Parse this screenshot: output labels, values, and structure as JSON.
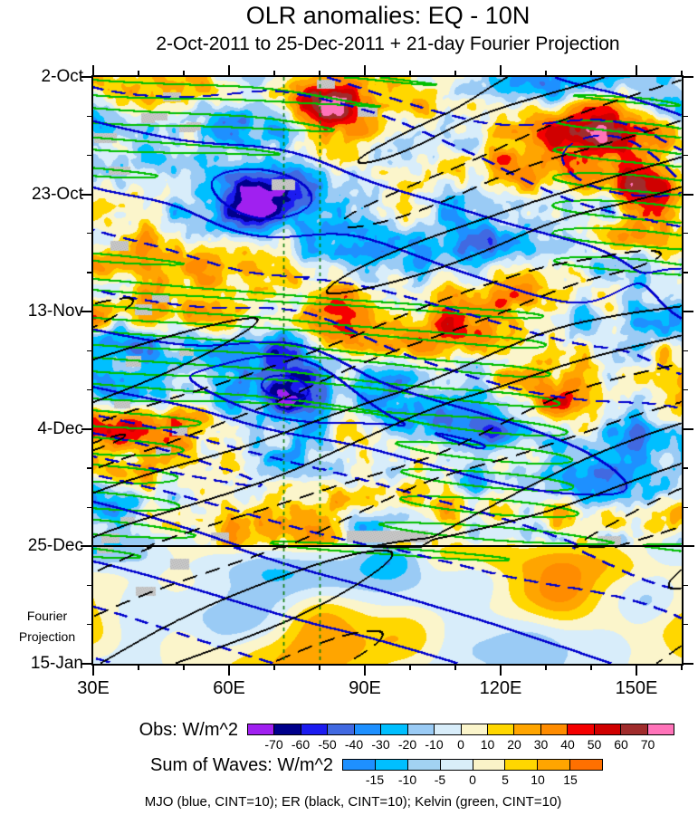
{
  "title": "OLR anomalies: EQ - 10N",
  "subtitle": "2-Oct-2011 to 25-Dec-2011 + 21-day Fourier Projection",
  "y_axis": {
    "tick_labels": [
      "2-Oct",
      "23-Oct",
      "13-Nov",
      "4-Dec",
      "25-Dec",
      "15-Jan"
    ],
    "side_note_line1": "Fourier",
    "side_note_line2": "Projection"
  },
  "x_axis": {
    "tick_labels": [
      "30E",
      "60E",
      "90E",
      "120E",
      "150E"
    ]
  },
  "colorbars": [
    {
      "label": "Obs: W/m^2",
      "tick_labels": [
        "-70",
        "-60",
        "-50",
        "-40",
        "-30",
        "-20",
        "-10",
        "0",
        "10",
        "20",
        "30",
        "40",
        "50",
        "60",
        "70"
      ],
      "colors": [
        "#A020F0",
        "#00008B",
        "#1C1CF0",
        "#4169E1",
        "#1E90FF",
        "#00BFFF",
        "#9ACBF5",
        "#D8EDFA",
        "#FBF5CB",
        "#FFD700",
        "#FFA500",
        "#FF8C00",
        "#F50000",
        "#D00000",
        "#A02C2C",
        "#FF73B9"
      ]
    },
    {
      "label": "Sum of Waves: W/m^2",
      "tick_labels": [
        "-15",
        "-10",
        "-5",
        "0",
        "5",
        "10",
        "15"
      ],
      "colors": [
        "#1E90FF",
        "#00BFFF",
        "#A2D2F2",
        "#D9EEF9",
        "#FAF3C8",
        "#FFD700",
        "#FFA500",
        "#FF7000"
      ]
    }
  ],
  "footnote": "MJO (blue, CINT=10); ER (black, CINT=10); Kelvin (green, CINT=10)",
  "chart_data": {
    "type": "heatmap",
    "subtype": "hovmoller-time-longitude",
    "title": "OLR anomalies: EQ - 10N",
    "subtitle": "2-Oct-2011 to 25-Dec-2011 + 21-day Fourier Projection",
    "x_range_deg_east": [
      30,
      160
    ],
    "x_major_tick_deg": 30,
    "x_minor_tick_deg": 10,
    "y_dates": [
      "2-Oct",
      "23-Oct",
      "13-Nov",
      "4-Dec",
      "25-Dec",
      "15-Jan"
    ],
    "y_major_tick_days": 21,
    "y_minor_tick_days": 7,
    "total_days": 105,
    "obs_projection_boundary_date": "25-Dec",
    "obs_fill_levels": [
      -70,
      -60,
      -50,
      -40,
      -30,
      -20,
      -10,
      0,
      10,
      20,
      30,
      40,
      50,
      60,
      70
    ],
    "sum_of_waves_levels": [
      -15,
      -10,
      -5,
      0,
      5,
      10,
      15
    ],
    "missing_data_color": "#C8C8C8",
    "reference_longitudes_deg": [
      72,
      80
    ],
    "overlays": [
      {
        "name": "MJO",
        "color": "blue",
        "line_hex": "#0000CD",
        "cint": 10
      },
      {
        "name": "ER",
        "color": "black",
        "line_hex": "#000000",
        "cint": 10
      },
      {
        "name": "Kelvin",
        "color": "green",
        "line_hex": "#00BE00",
        "cint": 10
      }
    ],
    "anomaly_centers_obs": [
      {
        "lon": 83,
        "day": 5,
        "amp": 42,
        "sx": 9,
        "sy": 6
      },
      {
        "lon": 62,
        "day": 10,
        "amp": -32,
        "sx": 8,
        "sy": 5
      },
      {
        "lon": 140,
        "day": 11,
        "amp": 38,
        "sx": 10,
        "sy": 6
      },
      {
        "lon": 152,
        "day": 22,
        "amp": 40,
        "sx": 7,
        "sy": 7
      },
      {
        "lon": 67,
        "day": 23,
        "amp": -55,
        "sx": 9,
        "sy": 6
      },
      {
        "lon": 90,
        "day": 27,
        "amp": -32,
        "sx": 7,
        "sy": 5
      },
      {
        "lon": 38,
        "day": 29,
        "amp": 22,
        "sx": 6,
        "sy": 5
      },
      {
        "lon": 85,
        "day": 43,
        "amp": 45,
        "sx": 8,
        "sy": 6
      },
      {
        "lon": 118,
        "day": 40,
        "amp": 24,
        "sx": 9,
        "sy": 6
      },
      {
        "lon": 72,
        "day": 53,
        "amp": -58,
        "sx": 9,
        "sy": 6
      },
      {
        "lon": 96,
        "day": 56,
        "amp": -28,
        "sx": 6,
        "sy": 4
      },
      {
        "lon": 130,
        "day": 54,
        "amp": 28,
        "sx": 8,
        "sy": 5
      },
      {
        "lon": 148,
        "day": 59,
        "amp": -38,
        "sx": 8,
        "sy": 6
      },
      {
        "lon": 87,
        "day": 63,
        "amp": 40,
        "sx": 7,
        "sy": 5
      },
      {
        "lon": 116,
        "day": 64,
        "amp": -32,
        "sx": 8,
        "sy": 5
      },
      {
        "lon": 74,
        "day": 72,
        "amp": -28,
        "sx": 8,
        "sy": 5
      },
      {
        "lon": 50,
        "day": 78,
        "amp": 22,
        "sx": 8,
        "sy": 5
      },
      {
        "lon": 92,
        "day": 80,
        "amp": -34,
        "sx": 9,
        "sy": 5
      },
      {
        "lon": 133,
        "day": 76,
        "amp": 22,
        "sx": 7,
        "sy": 5
      }
    ],
    "anomaly_centers_projection": [
      {
        "lon": 95,
        "day": 86,
        "amp": -26,
        "sx": 8,
        "sy": 3
      },
      {
        "lon": 80,
        "day": 97,
        "amp": 34,
        "sx": 10,
        "sy": 6
      },
      {
        "lon": 98,
        "day": 100,
        "amp": 26,
        "sx": 8,
        "sy": 5
      },
      {
        "lon": 133,
        "day": 92,
        "amp": 26,
        "sx": 8,
        "sy": 5
      },
      {
        "lon": 40,
        "day": 95,
        "amp": -12,
        "sx": 8,
        "sy": 7
      },
      {
        "lon": 115,
        "day": 89,
        "amp": -14,
        "sx": 6,
        "sy": 4
      },
      {
        "lon": 152,
        "day": 94,
        "amp": -12,
        "sx": 5,
        "sy": 5
      }
    ],
    "mjo_contour_centers": [
      {
        "lon": 67,
        "day": 23,
        "amp": -14,
        "sx": 14,
        "sy": 9
      },
      {
        "lon": 73,
        "day": 53,
        "amp": -15,
        "sx": 14,
        "sy": 9
      },
      {
        "lon": 145,
        "day": 12,
        "amp": 12,
        "sx": 12,
        "sy": 8
      },
      {
        "lon": 150,
        "day": 40,
        "amp": 10,
        "sx": 10,
        "sy": 8
      }
    ],
    "render": {
      "seed": 7,
      "noise_amp_obs": 26,
      "noise_amp_projection": 7
    }
  }
}
